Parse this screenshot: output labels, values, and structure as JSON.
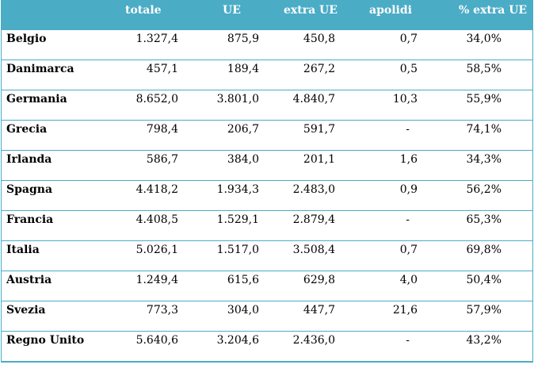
{
  "header": {
    "col0": "",
    "col1": "totale",
    "col2": "UE",
    "col3": "extra UE",
    "col4": "apolidi",
    "col5": "% extra UE"
  },
  "rows": [
    {
      "country": "Belgio",
      "totale": "1.327,4",
      "ue": "875,9",
      "extra": "450,8",
      "apolidi": "0,7",
      "pct": "34,0%"
    },
    {
      "country": "Danimarca",
      "totale": "457,1",
      "ue": "189,4",
      "extra": "267,2",
      "apolidi": "0,5",
      "pct": "58,5%"
    },
    {
      "country": "Germania",
      "totale": "8.652,0",
      "ue": "3.801,0",
      "extra": "4.840,7",
      "apolidi": "10,3",
      "pct": "55,9%"
    },
    {
      "country": "Grecia",
      "totale": "798,4",
      "ue": "206,7",
      "extra": "591,7",
      "apolidi": "-",
      "pct": "74,1%"
    },
    {
      "country": "Irlanda",
      "totale": "586,7",
      "ue": "384,0",
      "extra": "201,1",
      "apolidi": "1,6",
      "pct": "34,3%"
    },
    {
      "country": "Spagna",
      "totale": "4.418,2",
      "ue": "1.934,3",
      "extra": "2.483,0",
      "apolidi": "0,9",
      "pct": "56,2%"
    },
    {
      "country": "Francia",
      "totale": "4.408,5",
      "ue": "1.529,1",
      "extra": "2.879,4",
      "apolidi": "-",
      "pct": "65,3%"
    },
    {
      "country": "Italia",
      "totale": "5.026,1",
      "ue": "1.517,0",
      "extra": "3.508,4",
      "apolidi": "0,7",
      "pct": "69,8%"
    },
    {
      "country": "Austria",
      "totale": "1.249,4",
      "ue": "615,6",
      "extra": "629,8",
      "apolidi": "4,0",
      "pct": "50,4%"
    },
    {
      "country": "Svezia",
      "totale": "773,3",
      "ue": "304,0",
      "extra": "447,7",
      "apolidi": "21,6",
      "pct": "57,9%"
    },
    {
      "country": "Regno Unito",
      "totale": "5.640,6",
      "ue": "3.204,6",
      "extra": "2.436,0",
      "apolidi": "-",
      "pct": "43,2%"
    }
  ],
  "colors": {
    "header_bg": "#4bacc6",
    "header_text": "#ffffff",
    "border": "#4bacc6"
  }
}
